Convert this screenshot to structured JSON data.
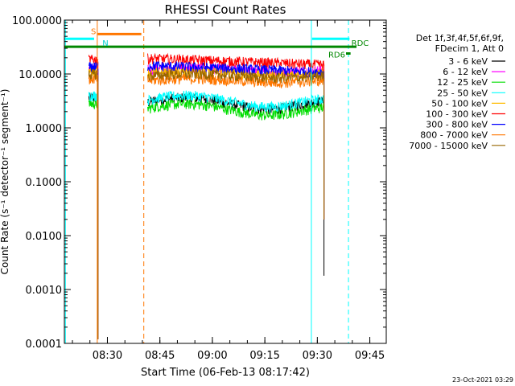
{
  "chart_data": {
    "type": "line",
    "title": "RHESSI Count Rates",
    "xlabel": "Start Time (06-Feb-13 08:17:42)",
    "ylabel": "Count Rate (s⁻¹ detector⁻¹ segment⁻¹)",
    "yscale": "log",
    "ylim": [
      0.0001,
      100
    ],
    "xlim_minutes_after_0817_42": [
      0,
      92
    ],
    "x_ticks": [
      {
        "label": "08:30",
        "t": 12.3
      },
      {
        "label": "08:45",
        "t": 27.3
      },
      {
        "label": "09:00",
        "t": 42.3
      },
      {
        "label": "09:15",
        "t": 57.3
      },
      {
        "label": "09:30",
        "t": 72.3
      },
      {
        "label": "09:45",
        "t": 87.3
      }
    ],
    "y_ticks": [
      {
        "label": "100.0000",
        "v": 100
      },
      {
        "label": "10.0000",
        "v": 10
      },
      {
        "label": "1.0000",
        "v": 1
      },
      {
        "label": "0.1000",
        "v": 0.1
      },
      {
        "label": "0.0100",
        "v": 0.01
      },
      {
        "label": "0.0010",
        "v": 0.001
      },
      {
        "label": "0.0001",
        "v": 0.0001
      }
    ],
    "legend_header": [
      "Det 1f,3f,4f,5f,6f,9f,",
      "FDecim 1, Att 0"
    ],
    "series": [
      {
        "name": "3 - 6 keV",
        "color": "#000000",
        "level": 3.0,
        "profile": "dip"
      },
      {
        "name": "6 - 12 keV",
        "color": "#ff00ff",
        "level": 12.0,
        "profile": "flat"
      },
      {
        "name": "12 - 25 keV",
        "color": "#00dd00",
        "level": 2.3,
        "profile": "dip"
      },
      {
        "name": "25 - 50 keV",
        "color": "#00ffff",
        "level": 3.3,
        "profile": "dip"
      },
      {
        "name": "50 - 100 keV",
        "color": "#ffbb00",
        "level": 10.5,
        "profile": "flat"
      },
      {
        "name": "100 - 300 keV",
        "color": "#ff0000",
        "level": 17.0,
        "profile": "decline"
      },
      {
        "name": "300 - 800 keV",
        "color": "#0000ff",
        "level": 12.5,
        "profile": "decline"
      },
      {
        "name": "800 - 7000 keV",
        "color": "#ff7700",
        "level": 7.6,
        "profile": "flat"
      },
      {
        "name": "7000 - 15000 keV",
        "color": "#996600",
        "level": 9.3,
        "profile": "flat"
      }
    ],
    "data_segments_minutes": [
      [
        7.0,
        9.6
      ],
      [
        23.8,
        74.2
      ]
    ],
    "state_bars": [
      {
        "label": "S",
        "color": "#ff7700",
        "t0": 9.5,
        "t1": 22.0,
        "v": 55
      },
      {
        "label": "N",
        "color": "#00ffff",
        "t0": 0,
        "t1": 8.5,
        "v": 45
      },
      {
        "label": "N",
        "color": "#00ffff",
        "t0": 70.8,
        "t1": 81.5,
        "v": 45
      },
      {
        "label": "RD6",
        "color": "#008800",
        "t0": 0,
        "t1": 83.5,
        "v": 32
      },
      {
        "label": "RD6",
        "color": "#008800",
        "t0": 80.5,
        "t1": 81.8,
        "v": 24
      }
    ],
    "state_labels_shown": [
      "S",
      "N",
      "RD6",
      "RDC"
    ],
    "vlines": [
      {
        "t": 0.3,
        "color": "#00ffff",
        "dash": false
      },
      {
        "t": 9.4,
        "color": "#ff7700",
        "dash": false
      },
      {
        "t": 22.7,
        "color": "#ff7700",
        "dash": true
      },
      {
        "t": 70.6,
        "color": "#00ffff",
        "dash": false
      },
      {
        "t": 81.2,
        "color": "#00ffff",
        "dash": true
      }
    ],
    "timestamp": "23-Oct-2021 03:29",
    "grid": false,
    "legend_position": "right"
  }
}
